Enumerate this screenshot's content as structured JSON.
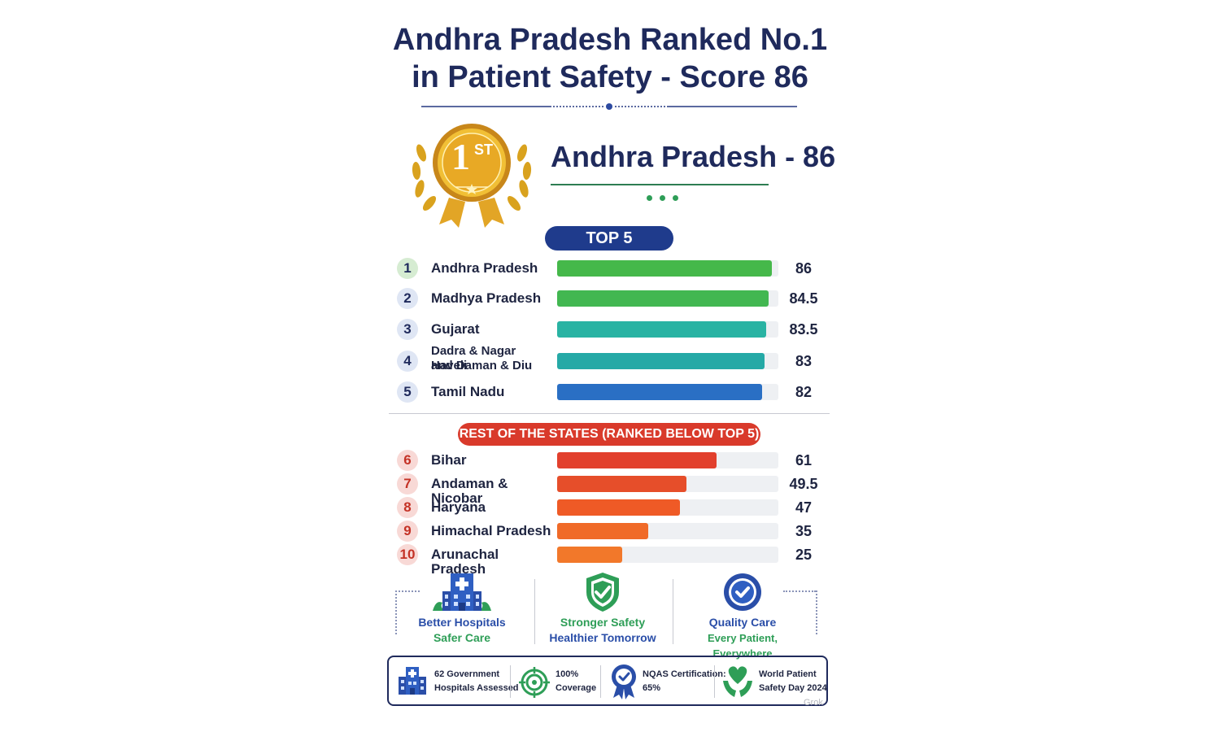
{
  "header": {
    "title_line1": "Andhra Pradesh Ranked No.1",
    "title_line2": "in Patient Safety - Score 86"
  },
  "medal": {
    "rank_number": "1",
    "rank_suffix": "ST"
  },
  "winner": {
    "label": "Andhra Pradesh - 86"
  },
  "sections": {
    "top_label": "TOP 5",
    "rest_label": "REST OF THE STATES (RANKED BELOW TOP 5)"
  },
  "chart_data": {
    "type": "bar",
    "orientation": "horizontal",
    "title": "Andhra Pradesh Ranked No.1 in Patient Safety - Score 86",
    "max": 100,
    "top5": [
      {
        "rank": "1",
        "state": "Andhra Pradesh",
        "value": 86,
        "label": "86",
        "color": "#45b84a"
      },
      {
        "rank": "2",
        "state": "Madhya Pradesh",
        "value": 84.5,
        "label": "84.5",
        "color": "#42b751"
      },
      {
        "rank": "3",
        "state": "Gujarat",
        "value": 83.5,
        "label": "83.5",
        "color": "#29b3a3"
      },
      {
        "rank": "4",
        "state_line1": "Dadra & Nagar Haveli",
        "state_line2": "and Daman & Diu",
        "value": 83,
        "label": "83",
        "color": "#25a9a6"
      },
      {
        "rank": "5",
        "state": "Tamil Nadu",
        "value": 82,
        "label": "82",
        "color": "#2a6fc4"
      }
    ],
    "rest": [
      {
        "rank": "6",
        "state": "Bihar",
        "value": 61,
        "label": "61",
        "color": "#e2402d"
      },
      {
        "rank": "7",
        "state": "Andaman & Nicobar",
        "value": 49.5,
        "label": "49.5",
        "color": "#e64e2a"
      },
      {
        "rank": "8",
        "state": "Haryana",
        "value": 47,
        "label": "47",
        "color": "#ef5a26"
      },
      {
        "rank": "9",
        "state": "Himachal Pradesh",
        "value": 35,
        "label": "35",
        "color": "#f06a28"
      },
      {
        "rank": "10",
        "state": "Arunachal Pradesh",
        "value": 25,
        "label": "25",
        "color": "#f2782a"
      }
    ]
  },
  "features": [
    {
      "icon": "hospital-icon",
      "line1": "Better Hospitals",
      "line2": "Safer Care",
      "color": "#2a4ea8"
    },
    {
      "icon": "shield-check-icon",
      "line1": "Stronger Safety",
      "line2": "Healthier Tomorrow",
      "color1": "#2e9e57",
      "color2": "#2a4ea8"
    },
    {
      "icon": "check-circle-icon",
      "line1": "Quality Care",
      "line2": "Every Patient, Everywhere",
      "color1": "#2a4ea8",
      "color2": "#2e9e57"
    }
  ],
  "stats": [
    {
      "icon": "hospital-icon",
      "line1": "62 Government",
      "line2": "Hospitals Assessed"
    },
    {
      "icon": "target-icon",
      "line1": "100%",
      "line2": "Coverage"
    },
    {
      "icon": "award-badge-icon",
      "line1": "NQAS Certification:",
      "line2": "65%"
    },
    {
      "icon": "heart-hands-icon",
      "line1": "World Patient",
      "line2": "Safety Day 2024"
    }
  ],
  "watermark": "Grok"
}
